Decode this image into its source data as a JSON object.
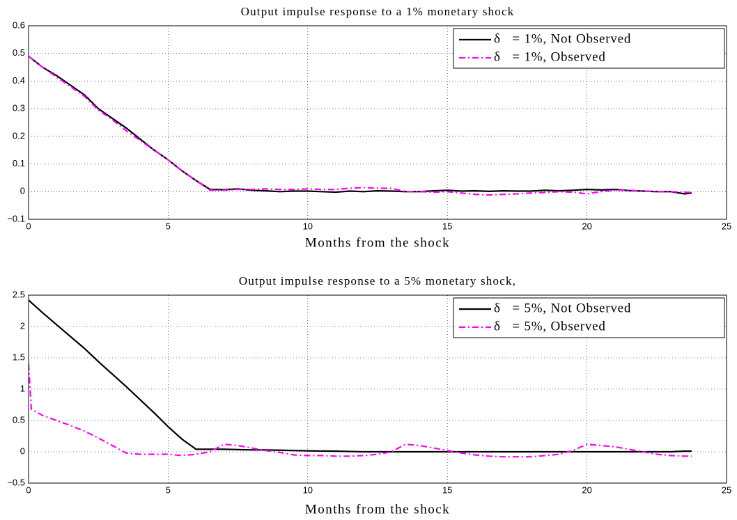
{
  "chart_data": [
    {
      "type": "line",
      "title": "Output impulse response to a 1% monetary shock",
      "x_label": "Months from the shock",
      "xlim": [
        0,
        25
      ],
      "xticks": [
        0,
        5,
        10,
        15,
        20,
        25
      ],
      "ylim": [
        -0.1,
        0.6
      ],
      "yticks": [
        {
          "value": -0.1,
          "label": "−0.1"
        },
        0,
        0.1,
        0.2,
        0.3,
        0.4,
        0.5,
        0.6
      ],
      "grid": true,
      "legend": "upper right",
      "x": [
        0,
        0.5,
        1,
        1.5,
        2,
        2.5,
        3,
        3.5,
        4,
        4.5,
        5,
        5.5,
        6,
        6.5,
        7,
        7.5,
        8,
        8.5,
        9,
        9.5,
        10,
        10.5,
        11,
        11.5,
        12,
        12.5,
        13,
        13.5,
        14,
        14.5,
        15,
        15.5,
        16,
        16.5,
        17,
        17.5,
        18,
        18.5,
        19,
        19.5,
        20,
        20.5,
        21,
        21.5,
        22,
        22.5,
        23,
        23.5,
        23.75
      ],
      "series": [
        {
          "name": "δ   = 1%, Not Observed",
          "color": "#000000",
          "style": "solid",
          "values": [
            0.49,
            0.45,
            0.42,
            0.385,
            0.35,
            0.3,
            0.265,
            0.23,
            0.19,
            0.15,
            0.115,
            0.075,
            0.04,
            0.008,
            0.007,
            0.01,
            0.005,
            0.003,
            0,
            0.002,
            0.002,
            0,
            -0.002,
            0.002,
            0,
            0.003,
            0.002,
            0,
            0,
            0.003,
            0.005,
            0.002,
            0.003,
            0.001,
            0.003,
            0.002,
            0.002,
            0.005,
            0.003,
            0.005,
            0.008,
            0.006,
            0.008,
            0.004,
            0.002,
            0,
            0,
            -0.008,
            -0.005
          ]
        },
        {
          "name": "δ   = 1%, Observed",
          "color": "#ff00ff",
          "style": "dashdot",
          "values": [
            0.49,
            0.45,
            0.415,
            0.38,
            0.345,
            0.295,
            0.26,
            0.22,
            0.185,
            0.15,
            0.115,
            0.075,
            0.04,
            0.005,
            0.005,
            0.008,
            0.008,
            0.01,
            0.008,
            0.008,
            0.01,
            0.008,
            0.008,
            0.012,
            0.015,
            0.012,
            0.012,
            0,
            0,
            -0.002,
            0,
            -0.005,
            -0.01,
            -0.012,
            -0.01,
            -0.008,
            -0.005,
            -0.003,
            0,
            -0.002,
            -0.008,
            0,
            0.005,
            0.005,
            0.002,
            0,
            0,
            -0.002,
            -0.003
          ]
        }
      ]
    },
    {
      "type": "line",
      "title": "Output impulse response to a 5% monetary shock,",
      "x_label": "Months from the shock",
      "xlim": [
        0,
        25
      ],
      "xticks": [
        0,
        5,
        10,
        15,
        20,
        25
      ],
      "ylim": [
        -0.5,
        2.5
      ],
      "yticks": [
        {
          "value": -0.5,
          "label": "−0.5"
        },
        0,
        0.5,
        1,
        1.5,
        2,
        2.5
      ],
      "grid": true,
      "legend": "upper right",
      "x": [
        0,
        0.1,
        0.5,
        1,
        1.5,
        2,
        2.5,
        3,
        3.5,
        4,
        4.5,
        5,
        5.5,
        6,
        6.5,
        7,
        7.5,
        8,
        8.5,
        9,
        9.5,
        10,
        10.5,
        11,
        11.5,
        12,
        12.5,
        13,
        13.5,
        14,
        14.5,
        15,
        15.5,
        16,
        16.5,
        17,
        17.5,
        18,
        18.5,
        19,
        19.5,
        20,
        20.5,
        21,
        21.5,
        22,
        22.5,
        23,
        23.5,
        23.75
      ],
      "series": [
        {
          "name": "δ   = 5%, Not Observed",
          "color": "#000000",
          "style": "solid",
          "values": [
            2.42,
            2.38,
            2.22,
            2.03,
            1.84,
            1.65,
            1.44,
            1.24,
            1.04,
            0.83,
            0.62,
            0.4,
            0.2,
            0.04,
            0.04,
            0.04,
            0.035,
            0.03,
            0.03,
            0.025,
            0.02,
            0.015,
            0.012,
            0.01,
            0.005,
            0,
            0,
            0,
            0,
            0,
            0,
            0,
            0,
            0,
            0,
            0,
            0,
            0,
            0,
            0,
            0,
            0,
            0,
            0,
            0,
            0,
            0,
            0,
            0.01,
            0.01
          ]
        },
        {
          "name": "δ   = 5%, Observed",
          "color": "#ff00ff",
          "style": "dashdot",
          "values": [
            1.4,
            0.68,
            0.58,
            0.5,
            0.42,
            0.33,
            0.22,
            0.1,
            -0.02,
            -0.04,
            -0.04,
            -0.04,
            -0.06,
            -0.04,
            0,
            0.12,
            0.1,
            0.06,
            0.02,
            -0.01,
            -0.05,
            -0.06,
            -0.06,
            -0.07,
            -0.07,
            -0.06,
            -0.04,
            0,
            0.12,
            0.1,
            0.06,
            0.02,
            -0.02,
            -0.05,
            -0.07,
            -0.08,
            -0.08,
            -0.08,
            -0.06,
            -0.04,
            0.02,
            0.12,
            0.1,
            0.08,
            0.04,
            0,
            -0.04,
            -0.06,
            -0.07,
            -0.07
          ]
        }
      ]
    }
  ]
}
